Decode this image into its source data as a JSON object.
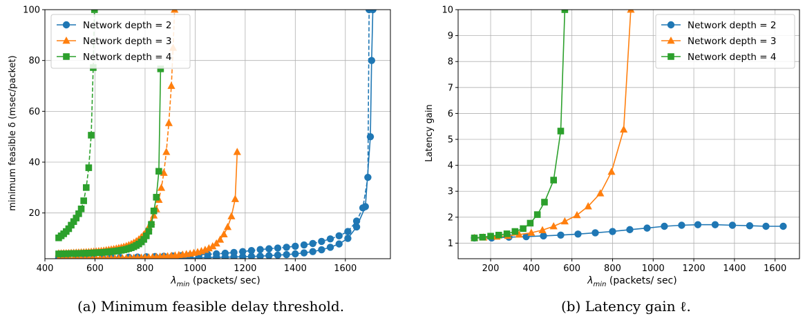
{
  "captions": {
    "a": "(a) Minimum feasible delay threshold.",
    "b": "(b) Latency gain ℓ."
  },
  "colors": {
    "depth2": "#1f77b4",
    "depth3": "#ff7f0e",
    "depth4": "#2ca02c",
    "grid": "#b0b0b0"
  },
  "chart_data": [
    {
      "type": "line",
      "xlabel_symbol": "λ",
      "xlabel_sub": "min",
      "xlabel": " (packets/ sec)",
      "ylabel": "minimum feasible δ (msec/packet)",
      "xlim": [
        400,
        1780
      ],
      "ylim": [
        2,
        100
      ],
      "xticks": [
        400,
        600,
        800,
        1000,
        1200,
        1400,
        1600
      ],
      "yticks": [
        20,
        40,
        60,
        80,
        100
      ],
      "grid": true,
      "legend_position": "top-left",
      "legend": [
        "Network depth = 2",
        "Network depth = 3",
        "Network depth = 4"
      ],
      "series": [
        {
          "name": "Network depth = 2",
          "color": "#1f77b4",
          "marker": "circle",
          "dash": false,
          "x": [
            455,
            490,
            525,
            560,
            595,
            630,
            665,
            700,
            735,
            770,
            805,
            840,
            875,
            910,
            945,
            980,
            1015,
            1050,
            1085,
            1120,
            1155,
            1190,
            1225,
            1260,
            1295,
            1330,
            1365,
            1400,
            1435,
            1470,
            1505,
            1540,
            1575,
            1610,
            1645,
            1680,
            1700,
            1705,
            1710
          ],
          "y": [
            1.9,
            1.9,
            1.9,
            1.95,
            1.95,
            2.0,
            2.0,
            2.0,
            2.05,
            2.1,
            2.1,
            2.15,
            2.2,
            2.2,
            2.3,
            2.35,
            2.4,
            2.5,
            2.55,
            2.6,
            2.7,
            2.8,
            2.9,
            3.0,
            3.2,
            3.4,
            3.6,
            3.9,
            4.3,
            4.8,
            5.5,
            6.5,
            7.8,
            10.0,
            14.5,
            22.5,
            50,
            80,
            100
          ]
        },
        {
          "name": "Network depth = 2 (dashed)",
          "color": "#1f77b4",
          "marker": "circle",
          "dash": true,
          "x": [
            455,
            490,
            525,
            560,
            595,
            630,
            665,
            700,
            735,
            770,
            805,
            840,
            875,
            910,
            945,
            980,
            1015,
            1050,
            1085,
            1120,
            1155,
            1190,
            1225,
            1260,
            1295,
            1330,
            1365,
            1400,
            1435,
            1470,
            1505,
            1540,
            1575,
            1610,
            1645,
            1670,
            1690,
            1695
          ],
          "y": [
            2.2,
            2.2,
            2.25,
            2.3,
            2.35,
            2.4,
            2.45,
            2.5,
            2.6,
            2.65,
            2.75,
            2.85,
            2.95,
            3.05,
            3.2,
            3.35,
            3.5,
            3.7,
            3.9,
            4.15,
            4.45,
            4.8,
            5.2,
            5.6,
            5.9,
            6.2,
            6.5,
            6.9,
            7.4,
            8.0,
            8.8,
            9.8,
            11.0,
            12.7,
            16.8,
            22.0,
            34.0,
            100
          ]
        },
        {
          "name": "Network depth = 3",
          "color": "#ff7f0e",
          "marker": "triangle",
          "dash": false,
          "x": [
            455,
            470,
            485,
            500,
            515,
            530,
            545,
            560,
            575,
            590,
            605,
            620,
            635,
            650,
            665,
            680,
            695,
            710,
            725,
            740,
            755,
            770,
            785,
            800,
            815,
            830,
            845,
            860,
            875,
            890,
            905,
            920,
            935,
            950,
            965,
            980,
            995,
            1010,
            1025,
            1040,
            1055,
            1070,
            1085,
            1100,
            1115,
            1130,
            1145,
            1160,
            1168
          ],
          "y": [
            1.95,
            1.95,
            1.95,
            1.95,
            2.0,
            2.0,
            2.0,
            2.0,
            2.05,
            2.05,
            2.05,
            2.1,
            2.1,
            2.1,
            2.15,
            2.15,
            2.2,
            2.2,
            2.25,
            2.3,
            2.35,
            2.4,
            2.45,
            2.5,
            2.55,
            2.6,
            2.7,
            2.8,
            2.9,
            3.0,
            3.15,
            3.3,
            3.45,
            3.6,
            3.8,
            4.0,
            4.3,
            4.6,
            5.0,
            5.5,
            6.1,
            6.9,
            8.0,
            9.5,
            11.6,
            14.5,
            18.7,
            25.5,
            44.0
          ]
        },
        {
          "name": "Network depth = 3 (dashed)",
          "color": "#ff7f0e",
          "marker": "triangle",
          "dash": true,
          "x": [
            455,
            465,
            475,
            485,
            495,
            505,
            515,
            525,
            535,
            545,
            555,
            565,
            575,
            585,
            595,
            605,
            615,
            625,
            635,
            645,
            655,
            665,
            675,
            685,
            695,
            705,
            715,
            725,
            735,
            745,
            755,
            765,
            775,
            785,
            795,
            805,
            815,
            825,
            835,
            845,
            855,
            865,
            875,
            885,
            895,
            905,
            912,
            918
          ],
          "y": [
            4.1,
            4.15,
            4.2,
            4.2,
            4.25,
            4.3,
            4.35,
            4.4,
            4.45,
            4.5,
            4.55,
            4.6,
            4.65,
            4.75,
            4.8,
            4.9,
            5.0,
            5.1,
            5.2,
            5.35,
            5.5,
            5.65,
            5.8,
            6.0,
            6.2,
            6.45,
            6.7,
            7.0,
            7.35,
            7.8,
            8.3,
            8.9,
            9.6,
            10.5,
            11.5,
            12.8,
            14.5,
            16.5,
            19.0,
            21.5,
            25.2,
            29.9,
            35.8,
            44.0,
            55.4,
            70.0,
            85.0,
            100
          ]
        },
        {
          "name": "Network depth = 4",
          "color": "#2ca02c",
          "marker": "square",
          "dash": false,
          "x": [
            455,
            465,
            475,
            485,
            495,
            505,
            515,
            525,
            535,
            545,
            555,
            565,
            575,
            585,
            595,
            605,
            615,
            625,
            635,
            645,
            655,
            665,
            675,
            685,
            695,
            705,
            715,
            725,
            735,
            745,
            755,
            765,
            775,
            785,
            795,
            805,
            815,
            825,
            835,
            845,
            855,
            862
          ],
          "y": [
            3.9,
            3.9,
            3.95,
            3.95,
            4.0,
            4.0,
            4.05,
            4.05,
            4.1,
            4.1,
            4.15,
            4.15,
            4.2,
            4.25,
            4.3,
            4.35,
            4.4,
            4.45,
            4.5,
            4.6,
            4.7,
            4.8,
            4.9,
            5.0,
            5.15,
            5.3,
            5.5,
            5.7,
            6.0,
            6.3,
            6.7,
            7.2,
            7.8,
            8.6,
            9.6,
            11.0,
            12.8,
            15.5,
            20.8,
            26.2,
            36.4,
            76.7
          ]
        },
        {
          "name": "Network depth = 4 (dashed)",
          "color": "#2ca02c",
          "marker": "square",
          "dash": true,
          "x": [
            455,
            465,
            475,
            485,
            495,
            505,
            515,
            525,
            535,
            545,
            555,
            565,
            575,
            585,
            593,
            598
          ],
          "y": [
            10.2,
            11.0,
            11.8,
            12.7,
            13.8,
            15.2,
            16.6,
            18.0,
            19.7,
            21.6,
            24.8,
            30.0,
            37.8,
            50.6,
            77.2,
            100
          ]
        }
      ]
    },
    {
      "type": "line",
      "xlabel_symbol": "λ",
      "xlabel_sub": "min",
      "xlabel": " (packets/ sec)",
      "ylabel": "Latency gain",
      "xlim": [
        40,
        1720
      ],
      "ylim": [
        0.4,
        10
      ],
      "xticks": [
        200,
        400,
        600,
        800,
        1000,
        1200,
        1400,
        1600
      ],
      "yticks": [
        1,
        2,
        3,
        4,
        5,
        6,
        7,
        8,
        9,
        10
      ],
      "grid": true,
      "legend_position": "top-right",
      "legend": [
        "Network depth = 2",
        "Network depth = 3",
        "Network depth = 4"
      ],
      "series": [
        {
          "name": "Network depth = 2",
          "color": "#1f77b4",
          "marker": "circle",
          "dash": false,
          "x": [
            120,
            205,
            290,
            375,
            460,
            545,
            630,
            715,
            800,
            885,
            970,
            1055,
            1140,
            1220,
            1305,
            1390,
            1475,
            1555,
            1640
          ],
          "y": [
            1.2,
            1.2,
            1.23,
            1.25,
            1.28,
            1.31,
            1.35,
            1.4,
            1.45,
            1.52,
            1.58,
            1.65,
            1.69,
            1.71,
            1.71,
            1.69,
            1.67,
            1.65,
            1.65
          ]
        },
        {
          "name": "Network depth = 3",
          "color": "#ff7f0e",
          "marker": "triangle",
          "dash": false,
          "x": [
            120,
            165,
            230,
            285,
            340,
            400,
            455,
            510,
            565,
            625,
            680,
            740,
            795,
            855,
            890
          ],
          "y": [
            1.2,
            1.22,
            1.25,
            1.28,
            1.33,
            1.4,
            1.5,
            1.65,
            1.84,
            2.08,
            2.42,
            2.92,
            3.75,
            5.38,
            10
          ]
        },
        {
          "name": "Network depth = 4",
          "color": "#2ca02c",
          "marker": "square",
          "dash": false,
          "x": [
            120,
            160,
            200,
            240,
            280,
            320,
            360,
            395,
            430,
            465,
            510,
            545,
            565
          ],
          "y": [
            1.2,
            1.23,
            1.27,
            1.31,
            1.36,
            1.45,
            1.56,
            1.77,
            2.1,
            2.58,
            3.43,
            5.32,
            10
          ]
        }
      ]
    }
  ]
}
